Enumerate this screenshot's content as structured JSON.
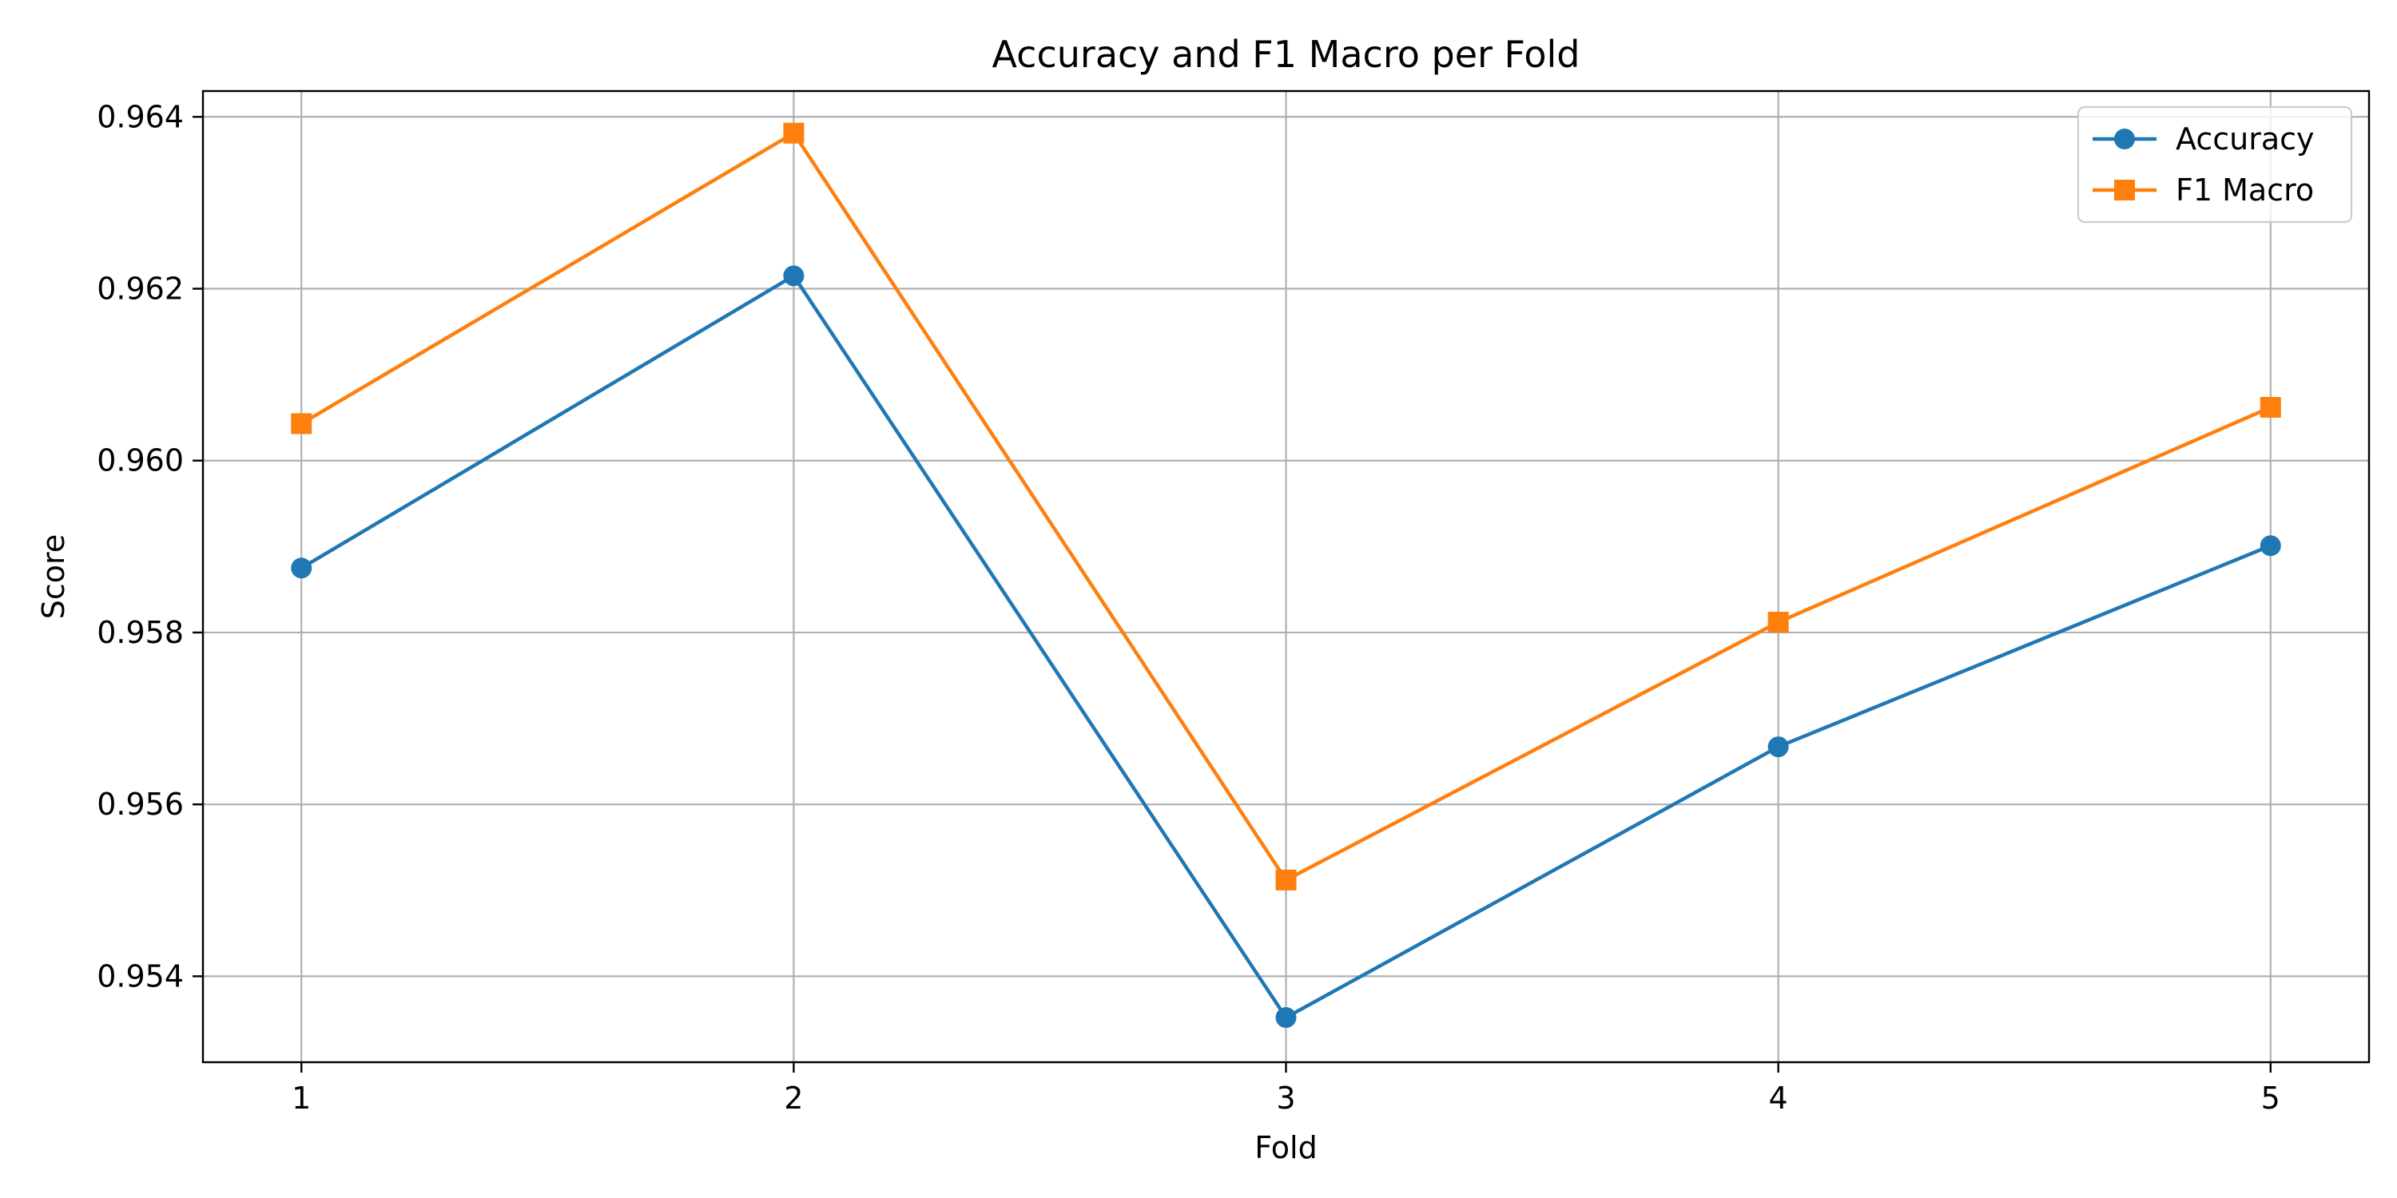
{
  "chart_data": {
    "type": "line",
    "title": "Accuracy and F1 Macro per Fold",
    "xlabel": "Fold",
    "ylabel": "Score",
    "x": [
      1,
      2,
      3,
      4,
      5
    ],
    "xticks": [
      "1",
      "2",
      "3",
      "4",
      "5"
    ],
    "xlim": [
      0.8,
      5.2
    ],
    "ylim": [
      0.953,
      0.9643
    ],
    "yticks": [
      0.954,
      0.956,
      0.958,
      0.96,
      0.962,
      0.964
    ],
    "ytick_labels": [
      "0.954",
      "0.956",
      "0.958",
      "0.960",
      "0.962",
      "0.964"
    ],
    "grid": true,
    "legend_position": "top-right",
    "series": [
      {
        "name": "Accuracy",
        "values": [
          0.95875,
          0.96215,
          0.95352,
          0.95667,
          0.95901
        ],
        "color": "#1f77b4",
        "marker": "circle"
      },
      {
        "name": "F1 Macro",
        "values": [
          0.96043,
          0.96381,
          0.95512,
          0.95812,
          0.96062
        ],
        "color": "#ff7f0e",
        "marker": "square"
      }
    ]
  }
}
